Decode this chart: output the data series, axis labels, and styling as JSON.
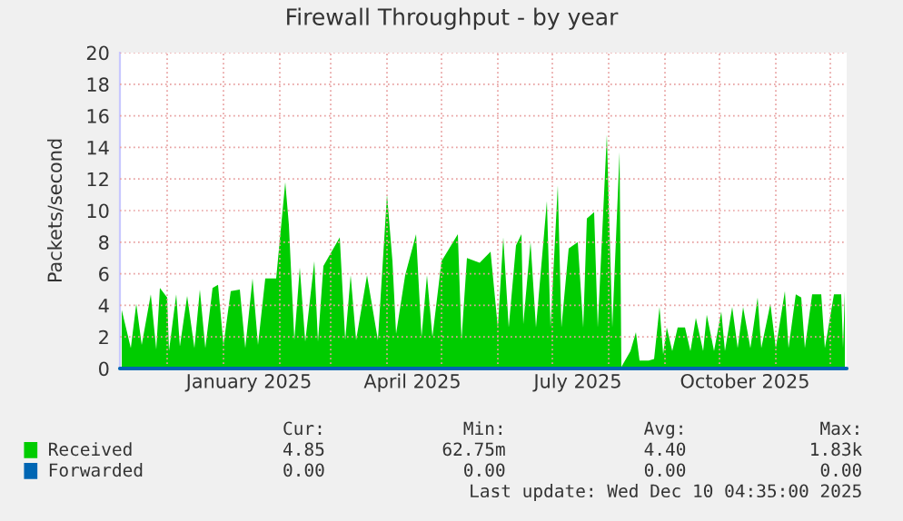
{
  "chart_data": {
    "type": "area",
    "title": "Firewall Throughput - by year",
    "ylabel": "Packets/second",
    "x": [
      "2024-11-06",
      "2024-11-11",
      "2024-11-14",
      "2024-11-17",
      "2024-11-22",
      "2024-11-25",
      "2024-11-27",
      "2024-12-01",
      "2024-12-02",
      "2024-12-06",
      "2024-12-08",
      "2024-12-12",
      "2024-12-16",
      "2024-12-19",
      "2024-12-22",
      "2024-12-26",
      "2024-12-29",
      "2025-01-01",
      "2025-01-05",
      "2025-01-10",
      "2025-01-13",
      "2025-01-17",
      "2025-01-20",
      "2025-01-24",
      "2025-01-30",
      "2025-02-04",
      "2025-02-06",
      "2025-02-09",
      "2025-02-12",
      "2025-02-15",
      "2025-02-20",
      "2025-02-22",
      "2025-02-25",
      "2025-03-06",
      "2025-03-09",
      "2025-03-12",
      "2025-03-15",
      "2025-03-21",
      "2025-03-27",
      "2025-04-01",
      "2025-04-04",
      "2025-04-06",
      "2025-04-11",
      "2025-04-17",
      "2025-04-20",
      "2025-04-23",
      "2025-04-26",
      "2025-05-01",
      "2025-05-10",
      "2025-05-12",
      "2025-05-15",
      "2025-05-22",
      "2025-05-28",
      "2025-06-01",
      "2025-06-04",
      "2025-06-07",
      "2025-06-11",
      "2025-06-14",
      "2025-06-15",
      "2025-06-19",
      "2025-06-22",
      "2025-06-28",
      "2025-06-30",
      "2025-07-04",
      "2025-07-06",
      "2025-07-10",
      "2025-07-15",
      "2025-07-18",
      "2025-07-20",
      "2025-07-24",
      "2025-07-26",
      "2025-07-31",
      "2025-08-03",
      "2025-08-07",
      "2025-08-08",
      "2025-08-11",
      "2025-08-13",
      "2025-08-16",
      "2025-08-18",
      "2025-08-23",
      "2025-08-26",
      "2025-08-29",
      "2025-08-31",
      "2025-09-02",
      "2025-09-05",
      "2025-09-08",
      "2025-09-12",
      "2025-09-15",
      "2025-09-18",
      "2025-09-22",
      "2025-09-24",
      "2025-09-28",
      "2025-10-02",
      "2025-10-04",
      "2025-10-08",
      "2025-10-11",
      "2025-10-14",
      "2025-10-18",
      "2025-10-22",
      "2025-10-24",
      "2025-10-29",
      "2025-11-01",
      "2025-11-06",
      "2025-11-08",
      "2025-11-12",
      "2025-11-15",
      "2025-11-17",
      "2025-11-21",
      "2025-11-26",
      "2025-11-28",
      "2025-12-03",
      "2025-12-07",
      "2025-12-08",
      "2025-12-09"
    ],
    "series": [
      {
        "name": "Received",
        "color": "#00cc00",
        "values": [
          3.7,
          1.3,
          4.1,
          1.5,
          4.7,
          1.2,
          5.1,
          4.5,
          1.1,
          4.7,
          1.4,
          4.6,
          1.3,
          5.0,
          1.3,
          5.1,
          5.3,
          1.5,
          4.9,
          5.0,
          1.3,
          5.7,
          1.5,
          5.7,
          5.7,
          11.8,
          9.1,
          1.8,
          6.4,
          1.7,
          6.8,
          1.7,
          6.5,
          8.3,
          1.8,
          5.9,
          1.8,
          5.9,
          1.8,
          11.0,
          6.8,
          2.2,
          5.9,
          8.5,
          2.0,
          5.9,
          2.0,
          6.8,
          8.5,
          1.8,
          7.0,
          6.7,
          7.4,
          2.6,
          8.3,
          2.6,
          7.8,
          8.5,
          2.8,
          8.0,
          2.6,
          10.6,
          2.6,
          11.6,
          2.6,
          7.6,
          8.0,
          2.6,
          9.5,
          9.9,
          2.6,
          14.8,
          2.6,
          13.7,
          0.1,
          0.7,
          1.1,
          2.3,
          0.5,
          0.5,
          0.6,
          3.9,
          0.9,
          2.6,
          1.1,
          2.6,
          2.6,
          1.1,
          3.2,
          1.1,
          3.4,
          1.1,
          3.6,
          1.1,
          3.9,
          1.3,
          3.9,
          1.3,
          4.5,
          1.3,
          4.1,
          1.3,
          4.9,
          1.3,
          4.7,
          4.5,
          1.3,
          4.7,
          4.7,
          1.3,
          4.7,
          4.7,
          1.3,
          4.9
        ]
      },
      {
        "name": "Forwarded",
        "color": "#0066b3",
        "type": "line",
        "x": [
          "2024-11-05",
          "2025-12-10"
        ],
        "values": [
          0,
          0
        ]
      }
    ],
    "xlim": [
      "2024-11-05",
      "2025-12-10"
    ],
    "xticks": [
      {
        "value": "2024-12-01",
        "label": null
      },
      {
        "value": "2025-01-01",
        "label": null
      },
      {
        "value": "2025-02-01",
        "label": null
      },
      {
        "value": "2025-03-01",
        "label": null
      },
      {
        "value": "2025-04-01",
        "label": null
      },
      {
        "value": "2025-05-01",
        "label": null
      },
      {
        "value": "2025-06-01",
        "label": null
      },
      {
        "value": "2025-07-01",
        "label": null
      },
      {
        "value": "2025-08-01",
        "label": null
      },
      {
        "value": "2025-09-01",
        "label": null
      },
      {
        "value": "2025-10-01",
        "label": null
      },
      {
        "value": "2025-11-01",
        "label": null
      },
      {
        "value": "2025-12-01",
        "label": null
      },
      {
        "value": "2025-01-15",
        "label": "January 2025"
      },
      {
        "value": "2025-04-15",
        "label": "April 2025"
      },
      {
        "value": "2025-07-15",
        "label": "July 2025"
      },
      {
        "value": "2025-10-15",
        "label": "October 2025"
      }
    ],
    "ylim": [
      0,
      20
    ],
    "yticks": [
      0,
      2,
      4,
      6,
      8,
      10,
      12,
      14,
      16,
      18,
      20
    ],
    "grid": true,
    "legend": "bottom",
    "annotations": [
      "Cur:",
      "Min:",
      "Avg:",
      "Max:",
      "4.85",
      "62.75m",
      "4.40",
      "1.83k",
      "0.00",
      "0.00",
      "0.00",
      "0.00",
      "Last update: Wed Dec 10 04:35:00 2025"
    ]
  }
}
